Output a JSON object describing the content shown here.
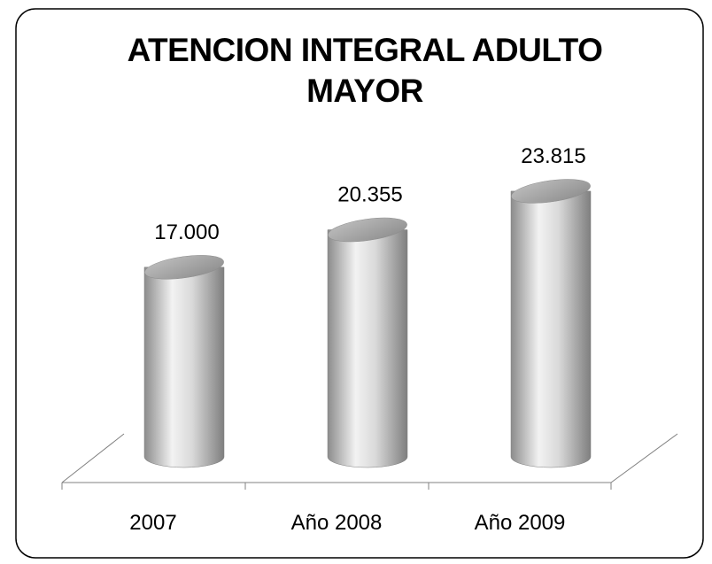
{
  "chart_data": {
    "type": "cylinder-bar",
    "title": "ATENCION INTEGRAL ADULTO MAYOR",
    "categories": [
      "2007",
      "Año 2008",
      "Año 2009"
    ],
    "values": [
      17000,
      20355,
      23815
    ],
    "value_labels": [
      "17.000",
      "20.355",
      "23.815"
    ],
    "color": "#a6a6a6",
    "ylim": [
      0,
      25000
    ]
  }
}
